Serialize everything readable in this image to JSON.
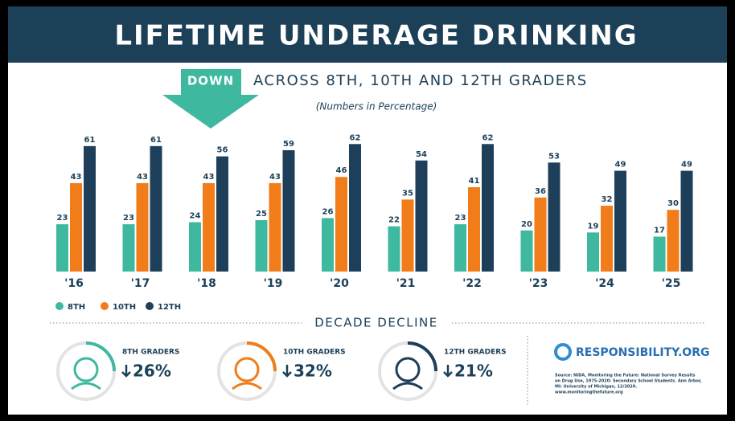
{
  "chart_data": {
    "type": "bar",
    "title": "LIFETIME UNDERAGE DRINKING",
    "badge": "DOWN",
    "subtitle": "ACROSS 8TH, 10TH AND 12TH GRADERS",
    "note": "(Numbers in Percentage)",
    "categories": [
      "'16",
      "'17",
      "'18",
      "'19",
      "'20",
      "'21",
      "'22",
      "'23",
      "'24",
      "'25"
    ],
    "series": [
      {
        "name": "8TH",
        "color": "#3fb8a0",
        "values": [
          23,
          23,
          24,
          25,
          26,
          22,
          23,
          20,
          19,
          17
        ]
      },
      {
        "name": "10TH",
        "color": "#f07d1a",
        "values": [
          43,
          43,
          43,
          43,
          46,
          35,
          41,
          36,
          32,
          30
        ]
      },
      {
        "name": "12TH",
        "color": "#1e3f5a",
        "values": [
          61,
          61,
          56,
          59,
          62,
          54,
          62,
          53,
          49,
          49
        ]
      }
    ],
    "section_title": "DECADE DECLINE",
    "declines": [
      {
        "label": "8TH GRADERS",
        "value": "26%",
        "color": "#3fb8a0"
      },
      {
        "label": "10TH GRADERS",
        "value": "32%",
        "color": "#f07d1a"
      },
      {
        "label": "12TH GRADERS",
        "value": "21%",
        "color": "#1e3f5a"
      }
    ],
    "brand": "RESPONSIBILITY.ORG",
    "source": [
      "Source: NIDA, Monitoring the Future: National Survey Results",
      "on Drug Use, 1975-2020: Secondary School Students. Ann Arbor,",
      "MI: University of Michigan, 12/2020.",
      "www.monitoringthefuture.org"
    ]
  }
}
